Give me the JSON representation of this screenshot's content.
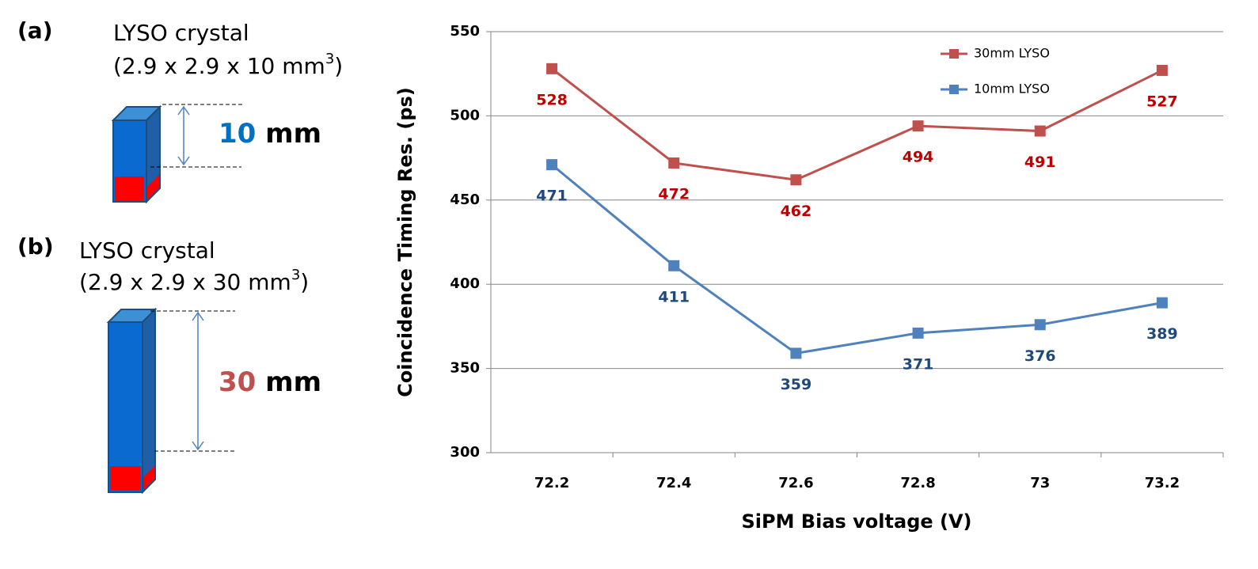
{
  "panels": [
    {
      "label": "(a)",
      "title": "LYSO crystal",
      "dimensions": "(2.9 x 2.9 x 10 mm",
      "exponent": "3",
      "closing": ")",
      "length": "10",
      "unit": "mm"
    },
    {
      "label": "(b)",
      "title": "LYSO crystal",
      "dimensions": "(2.9 x 2.9 x 30 mm",
      "exponent": "3",
      "closing": ")",
      "length": "30",
      "unit": "mm"
    }
  ],
  "chart_data": {
    "type": "line",
    "x_label": "SiPM Bias voltage (V)",
    "y_label": "Coincidence Timing Res. (ps)",
    "categories": [
      "72.2",
      "72.4",
      "72.6",
      "72.8",
      "73",
      "73.2"
    ],
    "series": [
      {
        "name": "30mm LYSO",
        "color": "#c0504d",
        "values": [
          528,
          472,
          462,
          494,
          491,
          527
        ]
      },
      {
        "name": "10mm LYSO",
        "color": "#4f81bd",
        "values": [
          471,
          411,
          359,
          371,
          376,
          389
        ]
      }
    ],
    "ylim": [
      300,
      550
    ],
    "yticks": [
      300,
      350,
      400,
      450,
      500,
      550
    ],
    "grid": true,
    "legend": "upper right"
  }
}
